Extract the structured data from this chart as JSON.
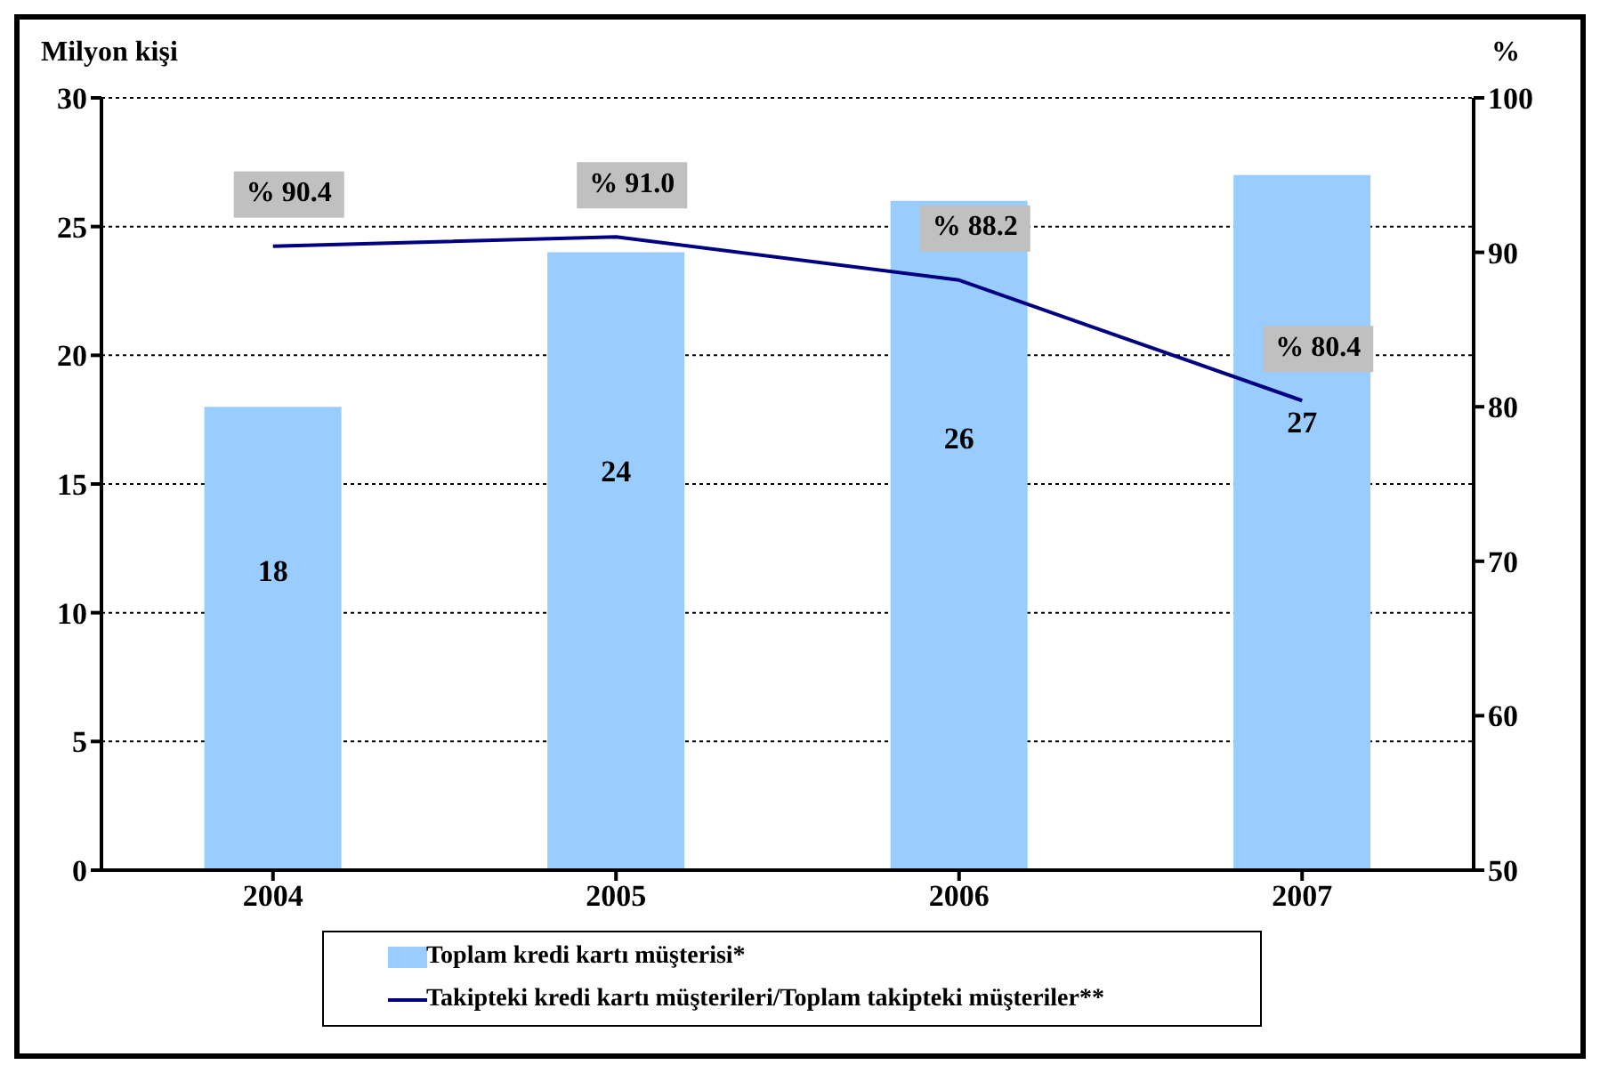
{
  "chart_data": {
    "type": "bar",
    "ylabel": "Milyon kişi",
    "y2label": "%",
    "categories": [
      "2004",
      "2005",
      "2006",
      "2007"
    ],
    "series": [
      {
        "name": "Toplam kredi kartı müşterisi*",
        "color": "#99ccff",
        "values": [
          18,
          24,
          26,
          27
        ]
      },
      {
        "name": "Takipteki kredi kartı müşterileri/Toplam takipteki müşteriler**",
        "type": "line",
        "axis": "y2",
        "color": "#000080",
        "values": [
          90.4,
          91.0,
          88.2,
          80.4
        ],
        "value_labels": [
          "% 90.4",
          "% 91.0",
          "% 88.2",
          "% 80.4"
        ]
      }
    ],
    "data_labels": true,
    "ylim": [
      0,
      30
    ],
    "yticks": [
      0,
      5,
      10,
      15,
      20,
      25,
      30
    ],
    "y2lim": [
      50,
      100
    ],
    "y2ticks": [
      50,
      60,
      70,
      80,
      90,
      100
    ],
    "grid": "y",
    "legend": "bottom",
    "marker": "none"
  }
}
